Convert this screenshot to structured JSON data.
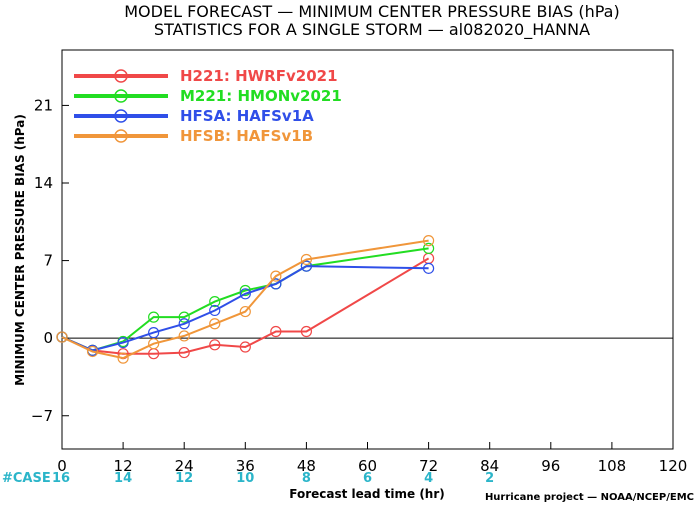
{
  "title": {
    "line1": "MODEL FORECAST — MINIMUM CENTER PRESSURE BIAS (hPa)",
    "line2": "STATISTICS FOR A SINGLE STORM — al082020_HANNA"
  },
  "credit": "Hurricane project — NOAA/NCEP/EMC",
  "cases": {
    "label": "#CASE",
    "values": [
      "16",
      "14",
      "12",
      "10",
      "8",
      "6",
      "4",
      "2"
    ]
  },
  "colors": {
    "H221": "#f04848",
    "M221": "#22dd22",
    "HFSA": "#2f4fe8",
    "HFSB": "#f0963a",
    "case": "#2bb5c9"
  },
  "chart_data": {
    "type": "line",
    "title": "MODEL FORECAST — MINIMUM CENTER PRESSURE BIAS (hPa)",
    "subtitle": "STATISTICS FOR A SINGLE STORM — al082020_HANNA",
    "xlabel": "Forecast lead time (hr)",
    "ylabel": "MINIMUM CENTER PRESSURE BIAS (hPa)",
    "xlim": [
      0,
      120
    ],
    "ylim": [
      -10,
      26
    ],
    "xticks": [
      0,
      12,
      24,
      36,
      48,
      60,
      72,
      84,
      96,
      108,
      120
    ],
    "yticks": [
      -7,
      0,
      7,
      14,
      21
    ],
    "zero_line": true,
    "grid": false,
    "legend": "top-left",
    "series": [
      {
        "key": "H221",
        "name": "H221: HWRFv2021",
        "x": [
          0,
          6,
          12,
          18,
          24,
          30,
          36,
          42,
          48,
          72
        ],
        "y": [
          0.1,
          -1.1,
          -1.4,
          -1.4,
          -1.3,
          -0.6,
          -0.8,
          0.6,
          0.6,
          7.2
        ]
      },
      {
        "key": "M221",
        "name": "M221: HMONv2021",
        "x": [
          0,
          6,
          12,
          18,
          24,
          30,
          36,
          42,
          48,
          72
        ],
        "y": [
          0.1,
          -1.1,
          -0.3,
          1.9,
          1.9,
          3.3,
          4.3,
          4.9,
          6.5,
          8.1
        ]
      },
      {
        "key": "HFSA",
        "name": "HFSA: HAFSv1A",
        "x": [
          0,
          6,
          12,
          18,
          24,
          30,
          36,
          42,
          48,
          72
        ],
        "y": [
          0.1,
          -1.1,
          -0.4,
          0.5,
          1.3,
          2.5,
          4.0,
          4.9,
          6.5,
          6.3
        ]
      },
      {
        "key": "HFSB",
        "name": "HFSB: HAFSv1B",
        "x": [
          0,
          6,
          12,
          18,
          24,
          30,
          36,
          42,
          48,
          72
        ],
        "y": [
          0.1,
          -1.2,
          -1.8,
          -0.5,
          0.2,
          1.3,
          2.4,
          5.6,
          7.1,
          8.8
        ]
      }
    ]
  }
}
